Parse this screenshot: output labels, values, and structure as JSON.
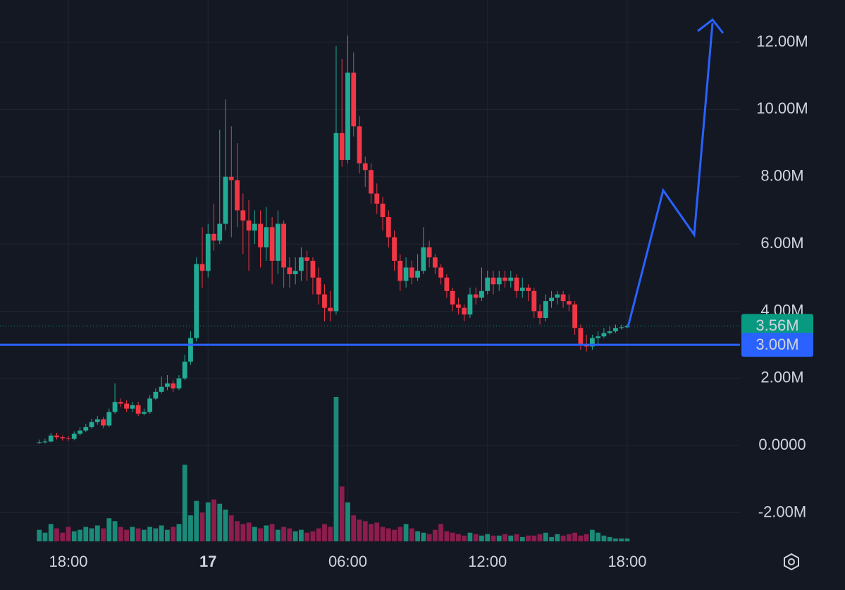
{
  "chart_data": {
    "type": "candlestick",
    "categories": [
      null,
      null,
      null,
      null,
      null,
      "18:00",
      null,
      null,
      null,
      null,
      null,
      null,
      null,
      null,
      null,
      null,
      null,
      null,
      null,
      null,
      null,
      null,
      null,
      null,
      null,
      null,
      null,
      null,
      null,
      "17",
      null,
      null,
      null,
      null,
      null,
      null,
      null,
      null,
      null,
      null,
      null,
      null,
      null,
      null,
      null,
      null,
      null,
      null,
      null,
      null,
      null,
      null,
      null,
      "06:00",
      null,
      null,
      null,
      null,
      null,
      null,
      null,
      null,
      null,
      null,
      null,
      null,
      null,
      null,
      null,
      null,
      null,
      null,
      null,
      null,
      null,
      null,
      null,
      "12:00",
      null,
      null,
      null,
      null,
      null,
      null,
      null,
      null,
      null,
      null,
      null,
      null,
      null,
      null,
      null,
      null,
      null,
      null,
      null,
      null,
      null,
      null,
      null,
      "18:00"
    ],
    "open": [
      0.08,
      0.1,
      0.12,
      0.3,
      0.25,
      0.22,
      0.2,
      0.35,
      0.45,
      0.55,
      0.7,
      0.78,
      0.6,
      1.0,
      1.3,
      1.25,
      1.1,
      1.2,
      0.95,
      1.0,
      1.4,
      1.6,
      1.75,
      1.85,
      1.7,
      2.0,
      2.5,
      3.2,
      5.4,
      5.2,
      6.3,
      6.1,
      6.6,
      8.0,
      7.9,
      7.0,
      6.7,
      6.4,
      6.6,
      5.9,
      6.5,
      5.5,
      6.6,
      5.3,
      5.1,
      5.2,
      5.6,
      5.5,
      5.0,
      4.5,
      4.1,
      4.0,
      9.3,
      8.5,
      11.1,
      9.5,
      8.4,
      8.2,
      7.5,
      7.2,
      6.8,
      6.2,
      5.5,
      4.9,
      5.3,
      5.0,
      5.2,
      5.9,
      5.6,
      5.3,
      5.0,
      4.6,
      4.2,
      4.1,
      3.9,
      4.5,
      4.4,
      4.6,
      5.0,
      4.8,
      5.0,
      4.9,
      5.0,
      4.6,
      4.7,
      4.6,
      4.0,
      3.8,
      4.3,
      4.4,
      4.5,
      4.3,
      4.2,
      3.5,
      3.0,
      2.95,
      3.2,
      3.25,
      3.35,
      3.4,
      3.5,
      3.52
    ],
    "high": [
      0.18,
      0.2,
      0.38,
      0.38,
      0.3,
      0.28,
      0.42,
      0.55,
      0.65,
      0.8,
      0.88,
      0.85,
      1.1,
      1.85,
      1.4,
      1.35,
      1.3,
      1.3,
      1.1,
      1.5,
      1.7,
      2.05,
      2.1,
      1.95,
      2.1,
      2.7,
      3.4,
      5.6,
      6.5,
      6.6,
      7.2,
      9.4,
      10.3,
      9.5,
      9.0,
      7.5,
      7.3,
      7.0,
      7.0,
      7.1,
      6.8,
      7.0,
      6.7,
      5.6,
      5.6,
      5.9,
      5.8,
      5.6,
      5.3,
      4.8,
      4.6,
      11.9,
      11.5,
      12.2,
      11.7,
      9.8,
      8.6,
      8.4,
      7.8,
      7.4,
      7.0,
      6.4,
      5.7,
      5.6,
      5.5,
      5.7,
      6.5,
      6.1,
      5.7,
      5.4,
      5.1,
      4.7,
      4.4,
      4.2,
      4.7,
      4.7,
      5.3,
      5.2,
      5.2,
      5.2,
      5.2,
      5.2,
      5.1,
      5.0,
      4.8,
      4.7,
      4.2,
      4.5,
      4.6,
      4.6,
      4.6,
      4.5,
      4.3,
      3.6,
      3.3,
      3.3,
      3.4,
      3.5,
      3.55,
      3.6,
      3.6,
      3.6
    ],
    "low": [
      0.05,
      0.06,
      0.1,
      0.18,
      0.15,
      0.14,
      0.16,
      0.3,
      0.4,
      0.5,
      0.62,
      0.52,
      0.55,
      0.95,
      1.15,
      1.0,
      1.0,
      0.88,
      0.9,
      0.95,
      1.35,
      1.55,
      1.65,
      1.6,
      1.65,
      1.95,
      2.4,
      3.1,
      4.7,
      5.0,
      5.8,
      6.0,
      6.4,
      6.2,
      6.5,
      5.7,
      5.2,
      6.0,
      5.3,
      5.5,
      4.8,
      5.1,
      4.7,
      4.7,
      4.8,
      4.9,
      4.9,
      4.5,
      4.2,
      3.7,
      3.7,
      3.9,
      8.3,
      8.4,
      9.2,
      8.1,
      7.7,
      7.2,
      6.9,
      6.4,
      5.9,
      5.2,
      4.6,
      4.7,
      4.8,
      4.9,
      5.1,
      5.3,
      5.1,
      4.8,
      4.4,
      4.0,
      3.9,
      3.7,
      3.8,
      4.2,
      4.3,
      4.5,
      4.5,
      4.6,
      4.7,
      4.7,
      4.4,
      4.4,
      4.3,
      3.8,
      3.6,
      3.7,
      4.1,
      4.2,
      4.1,
      4.0,
      3.3,
      2.85,
      2.8,
      2.85,
      3.0,
      3.2,
      3.3,
      3.35,
      3.45,
      3.5
    ],
    "close": [
      0.1,
      0.12,
      0.3,
      0.25,
      0.22,
      0.2,
      0.35,
      0.45,
      0.55,
      0.7,
      0.78,
      0.6,
      1.0,
      1.3,
      1.25,
      1.1,
      1.2,
      0.95,
      1.0,
      1.4,
      1.6,
      1.75,
      1.85,
      1.7,
      2.0,
      2.5,
      3.2,
      5.4,
      5.2,
      6.3,
      6.1,
      6.6,
      8.0,
      7.9,
      7.0,
      6.7,
      6.4,
      6.6,
      5.9,
      6.5,
      5.5,
      6.6,
      5.3,
      5.1,
      5.2,
      5.6,
      5.5,
      5.0,
      4.5,
      4.1,
      4.0,
      9.3,
      8.5,
      11.1,
      9.5,
      8.4,
      8.2,
      7.5,
      7.2,
      6.8,
      6.2,
      5.5,
      4.9,
      5.3,
      5.0,
      5.2,
      5.9,
      5.6,
      5.3,
      5.0,
      4.6,
      4.2,
      4.1,
      3.9,
      4.5,
      4.4,
      4.6,
      5.0,
      4.8,
      5.0,
      4.9,
      5.0,
      4.6,
      4.7,
      4.6,
      4.0,
      3.8,
      4.3,
      4.4,
      4.5,
      4.3,
      4.2,
      3.5,
      3.0,
      2.95,
      3.2,
      3.25,
      3.35,
      3.4,
      3.5,
      3.52,
      3.56
    ],
    "volume": [
      8,
      6,
      12,
      9,
      6,
      10,
      7,
      8,
      10,
      9,
      11,
      9,
      16,
      14,
      10,
      8,
      10,
      9,
      8,
      10,
      9,
      11,
      8,
      10,
      12,
      53,
      18,
      28,
      20,
      27,
      29,
      26,
      22,
      18,
      14,
      12,
      13,
      10,
      9,
      11,
      12,
      8,
      10,
      9,
      7,
      8,
      6,
      7,
      9,
      12,
      10,
      100,
      38,
      27,
      18,
      15,
      14,
      12,
      13,
      10,
      9,
      8,
      10,
      12,
      9,
      7,
      6,
      5,
      8,
      12,
      7,
      6,
      5,
      4,
      6,
      5,
      4,
      5,
      4,
      4,
      5,
      4,
      5,
      3,
      4,
      4,
      5,
      6,
      3,
      5,
      4,
      5,
      6,
      4,
      5,
      8,
      6,
      4,
      3,
      2,
      2,
      2
    ],
    "up_color": "#22ab94",
    "down_color": "#f23645",
    "up_volume_color": "#1b8a78",
    "down_volume_color": "#8c1d4c",
    "ylim": [
      -2.85,
      13.26
    ],
    "yticks": [
      {
        "value": -2,
        "label": "-2.00M"
      },
      {
        "value": 0,
        "label": "0.0000"
      },
      {
        "value": 2,
        "label": "2.00M"
      },
      {
        "value": 4,
        "label": "4.00M"
      },
      {
        "value": 6,
        "label": "6.00M"
      },
      {
        "value": 8,
        "label": "8.00M"
      },
      {
        "value": 10,
        "label": "10.00M"
      },
      {
        "value": 12,
        "label": "12.00M"
      }
    ],
    "grid": true,
    "last_price": {
      "value": 3.56,
      "label": "3.56M",
      "color": "#089981"
    },
    "horizontal_line": {
      "value": 3,
      "label": "3.00M",
      "color": "#2962ff"
    }
  }
}
